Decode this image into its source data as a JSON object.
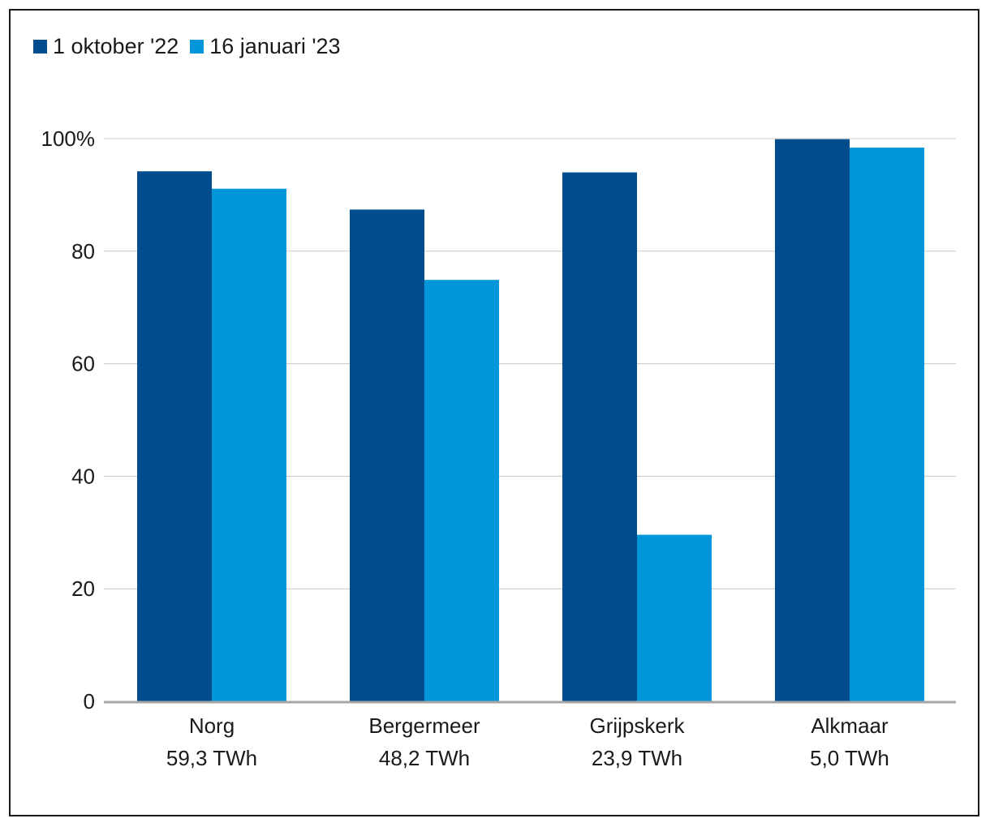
{
  "chart_data": {
    "type": "bar",
    "title": "",
    "xlabel": "",
    "ylabel": "",
    "ylim": [
      0,
      100
    ],
    "yticks": [
      {
        "value": 0,
        "label": "0"
      },
      {
        "value": 20,
        "label": "20"
      },
      {
        "value": 40,
        "label": "40"
      },
      {
        "value": 60,
        "label": "60"
      },
      {
        "value": 80,
        "label": "80"
      },
      {
        "value": 100,
        "label": "100%"
      }
    ],
    "grid": true,
    "legend_position": "top-left",
    "categories": [
      {
        "name": "Norg",
        "sub": "59,3 TWh"
      },
      {
        "name": "Bergermeer",
        "sub": "48,2 TWh"
      },
      {
        "name": "Grijpskerk",
        "sub": "23,9 TWh"
      },
      {
        "name": "Alkmaar",
        "sub": "5,0 TWh"
      }
    ],
    "series": [
      {
        "name": "1 oktober '22",
        "color": "#004c8c",
        "values": [
          94.2,
          87.4,
          94.0,
          99.9
        ]
      },
      {
        "name": "16 januari '23",
        "color": "#0096d9",
        "values": [
          91.1,
          74.9,
          29.6,
          98.4
        ]
      }
    ]
  },
  "colors": {
    "gridline": "#c8c8c8",
    "baseline": "#a6a6a6",
    "text": "#1a1a1a"
  }
}
